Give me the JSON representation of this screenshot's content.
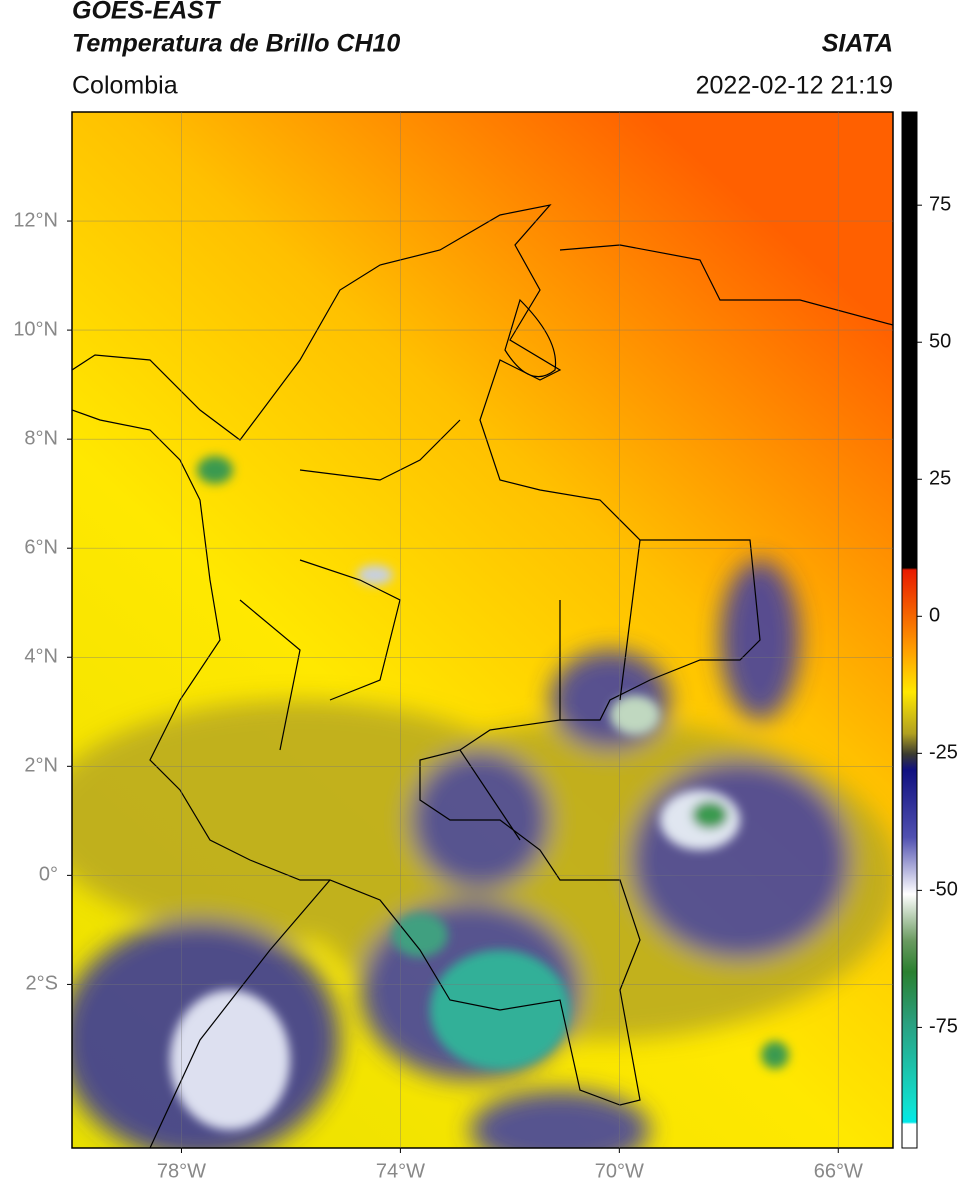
{
  "header": {
    "title": "GOES-EAST",
    "subtitle": "Temperatura de Brillo CH10",
    "source": "SIATA",
    "region": "Colombia",
    "datetime": "2022-02-12 21:19"
  },
  "map": {
    "xlim": [
      -80,
      -65
    ],
    "ylim": [
      -5,
      14
    ],
    "xticks": [
      {
        "value": -78,
        "label": "78°W"
      },
      {
        "value": -74,
        "label": "74°W"
      },
      {
        "value": -70,
        "label": "70°W"
      },
      {
        "value": -66,
        "label": "66°W"
      }
    ],
    "yticks": [
      {
        "value": 12,
        "label": "12°N"
      },
      {
        "value": 10,
        "label": "10°N"
      },
      {
        "value": 8,
        "label": "8°N"
      },
      {
        "value": 6,
        "label": "6°N"
      },
      {
        "value": 4,
        "label": "4°N"
      },
      {
        "value": 2,
        "label": "2°N"
      },
      {
        "value": 0,
        "label": "0°"
      },
      {
        "value": -2,
        "label": "2°S"
      }
    ],
    "grid": true
  },
  "colorbar": {
    "lim": [
      -97,
      92
    ],
    "ticks": [
      75,
      50,
      25,
      0,
      -25,
      -50,
      -75
    ]
  }
}
